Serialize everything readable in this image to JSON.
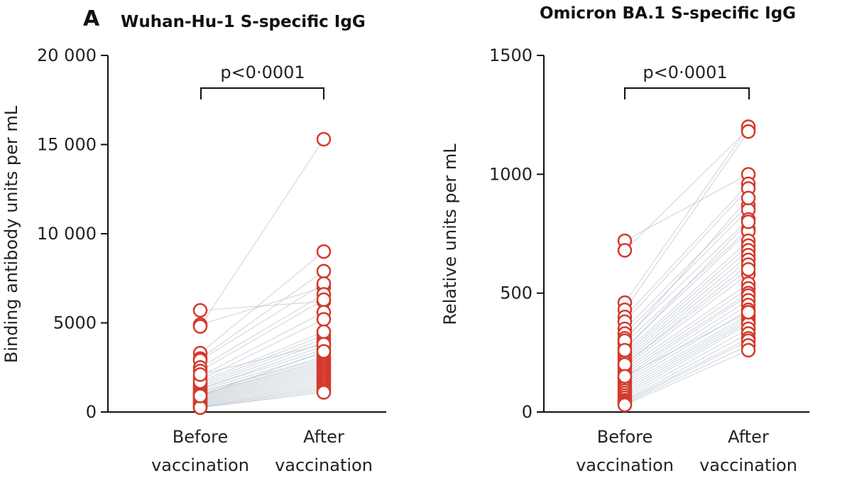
{
  "chart_data": [
    {
      "type": "scatter",
      "panel_letter": "A",
      "title": "Wuhan-Hu-1 S-specific IgG",
      "ylabel": "Binding antibody units per mL",
      "xlabel": "",
      "categories": [
        [
          "Before",
          "vaccination"
        ],
        [
          "After",
          "vaccination"
        ]
      ],
      "ylim": [
        0,
        20000
      ],
      "yticks": [
        0,
        5000,
        10000,
        15000,
        20000
      ],
      "ytick_labels": [
        "0",
        "5000",
        "10 000",
        "15 000",
        "20 000"
      ],
      "annotation": "p<0·0001",
      "paired_values": [
        [
          5700,
          6200
        ],
        [
          4900,
          7000
        ],
        [
          4800,
          15300
        ],
        [
          3300,
          9000
        ],
        [
          3000,
          7900
        ],
        [
          2900,
          7200
        ],
        [
          2500,
          6600
        ],
        [
          2300,
          6300
        ],
        [
          2000,
          5600
        ],
        [
          1800,
          5200
        ],
        [
          1600,
          4300
        ],
        [
          1500,
          4100
        ],
        [
          1400,
          3900
        ],
        [
          1300,
          3700
        ],
        [
          1300,
          3500
        ],
        [
          1200,
          3300
        ],
        [
          1100,
          3100
        ],
        [
          1100,
          3000
        ],
        [
          1000,
          2900
        ],
        [
          1000,
          2800
        ],
        [
          950,
          2700
        ],
        [
          900,
          2600
        ],
        [
          850,
          2500
        ],
        [
          800,
          2400
        ],
        [
          750,
          2300
        ],
        [
          700,
          2200
        ],
        [
          650,
          2100
        ],
        [
          600,
          2000
        ],
        [
          550,
          1900
        ],
        [
          500,
          1800
        ],
        [
          450,
          1700
        ],
        [
          400,
          1600
        ],
        [
          350,
          1500
        ],
        [
          300,
          1400
        ],
        [
          300,
          1300
        ],
        [
          250,
          1200
        ],
        [
          250,
          1100
        ],
        [
          1700,
          4500
        ],
        [
          2100,
          3800
        ],
        [
          900,
          3400
        ]
      ]
    },
    {
      "type": "scatter",
      "panel_letter": "",
      "title": "Omicron BA.1 S-specific IgG",
      "ylabel": "Relative units per mL",
      "xlabel": "",
      "categories": [
        [
          "Before",
          "vaccination"
        ],
        [
          "After",
          "vaccination"
        ]
      ],
      "ylim": [
        0,
        1500
      ],
      "yticks": [
        0,
        500,
        1000,
        1500
      ],
      "ytick_labels": [
        "0",
        "500",
        "1000",
        "1500"
      ],
      "annotation": "p<0·0001",
      "paired_values": [
        [
          720,
          1000
        ],
        [
          680,
          1190
        ],
        [
          460,
          1200
        ],
        [
          430,
          1180
        ],
        [
          400,
          960
        ],
        [
          380,
          940
        ],
        [
          350,
          870
        ],
        [
          330,
          850
        ],
        [
          310,
          810
        ],
        [
          290,
          770
        ],
        [
          270,
          760
        ],
        [
          250,
          720
        ],
        [
          240,
          700
        ],
        [
          230,
          680
        ],
        [
          220,
          660
        ],
        [
          210,
          640
        ],
        [
          200,
          620
        ],
        [
          190,
          580
        ],
        [
          180,
          540
        ],
        [
          170,
          520
        ],
        [
          160,
          500
        ],
        [
          150,
          490
        ],
        [
          140,
          470
        ],
        [
          130,
          450
        ],
        [
          120,
          430
        ],
        [
          110,
          410
        ],
        [
          100,
          400
        ],
        [
          90,
          390
        ],
        [
          80,
          380
        ],
        [
          70,
          370
        ],
        [
          60,
          350
        ],
        [
          50,
          330
        ],
        [
          45,
          310
        ],
        [
          40,
          300
        ],
        [
          35,
          280
        ],
        [
          30,
          260
        ],
        [
          300,
          900
        ],
        [
          260,
          800
        ],
        [
          200,
          600
        ],
        [
          150,
          420
        ]
      ]
    }
  ]
}
